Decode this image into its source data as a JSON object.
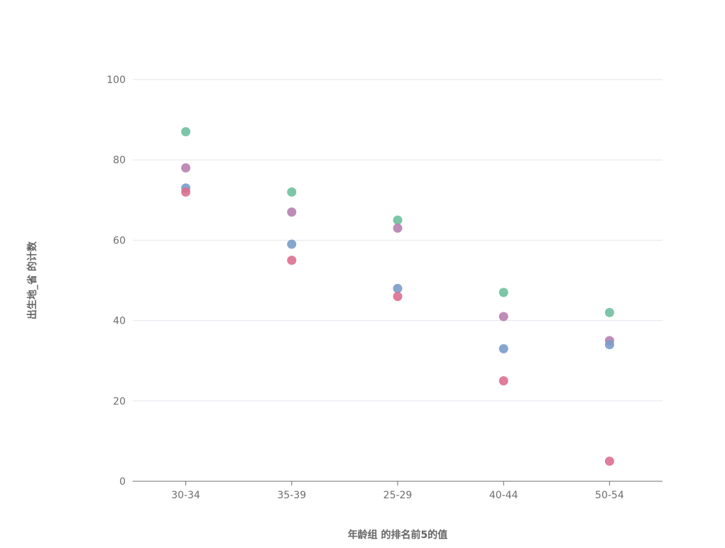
{
  "chart_data": {
    "type": "scatter",
    "categories": [
      "30-34",
      "35-39",
      "25-29",
      "40-44",
      "50-54"
    ],
    "series": [
      {
        "color": "#6fbf9f",
        "values": [
          87,
          72,
          65,
          47,
          42
        ]
      },
      {
        "color": "#b77fae",
        "values": [
          78,
          67,
          63,
          41,
          35
        ]
      },
      {
        "color": "#7a9cc9",
        "values": [
          73,
          59,
          48,
          33,
          34
        ]
      },
      {
        "color": "#dc6f8f",
        "values": [
          72,
          55,
          46,
          25,
          5
        ]
      }
    ],
    "xlabel": "年龄组 的排名前5的值",
    "ylabel": "出生地_省 的计数",
    "ylim": [
      0,
      100
    ],
    "yticks": [
      0,
      20,
      40,
      60,
      80,
      100
    ],
    "grid": true
  }
}
